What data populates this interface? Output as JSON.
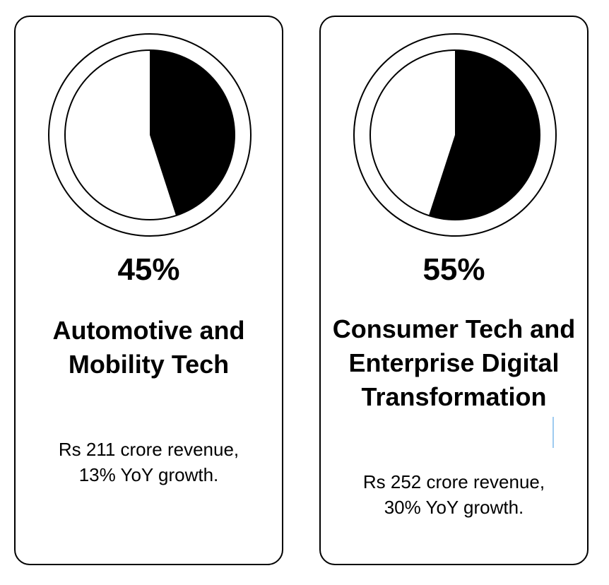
{
  "chart_data": [
    {
      "type": "pie",
      "value_label": "45%",
      "value": 45,
      "slice_color": "#000000",
      "background_color": "#ffffff",
      "title": "Automotive and Mobility Tech",
      "description": "Rs 211 crore revenue, 13% YoY growth."
    },
    {
      "type": "pie",
      "value_label": "55%",
      "value": 55,
      "slice_color": "#000000",
      "background_color": "#ffffff",
      "title": "Consumer Tech and Enterprise Digital Transformation",
      "description": "Rs 252 crore revenue, 30% YoY growth."
    }
  ]
}
